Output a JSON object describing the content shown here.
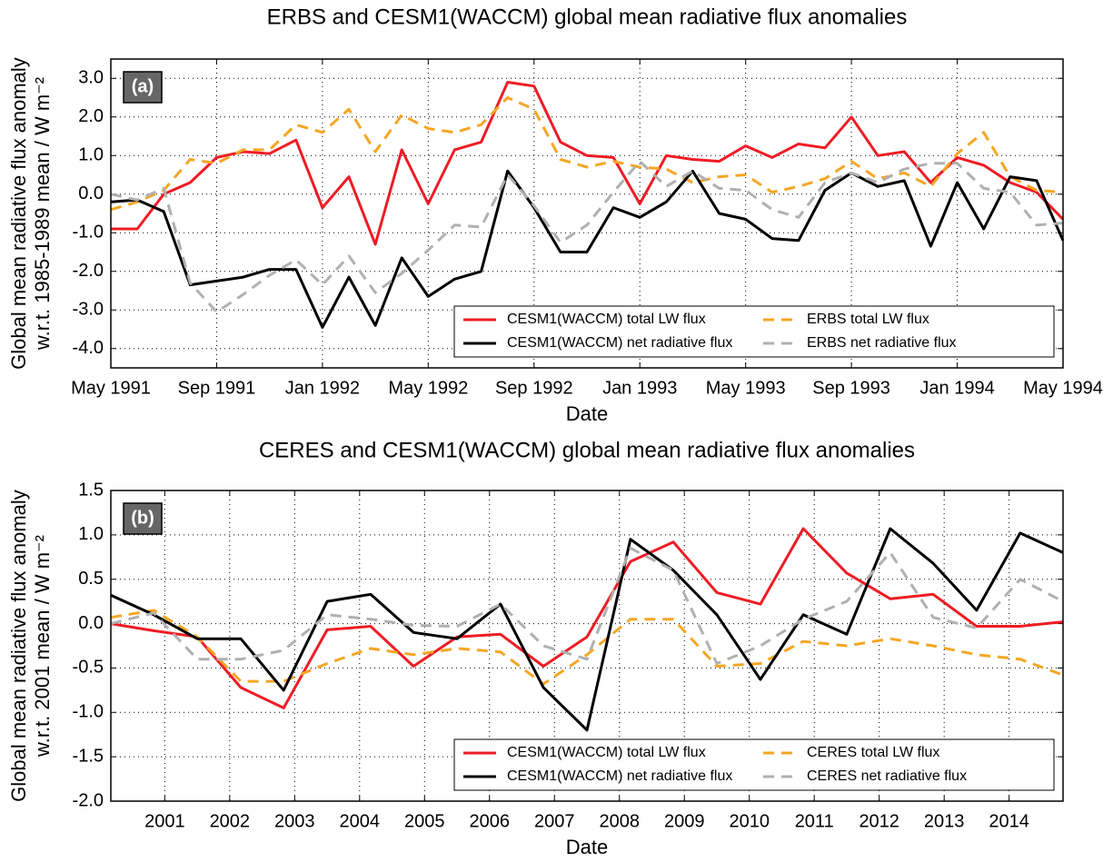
{
  "chart_data": [
    {
      "type": "line",
      "title": "ERBS and CESM1(WACCM) global mean radiative flux anomalies",
      "panel_label": "(a)",
      "xlabel": "Date",
      "ylabel": [
        "Global mean radiative flux anomaly",
        "w.r.t. 1985-1989 mean / W m⁻²"
      ],
      "x": [
        "1991-05",
        "1991-06",
        "1991-07",
        "1991-08",
        "1991-09",
        "1991-10",
        "1991-11",
        "1991-12",
        "1992-01",
        "1992-02",
        "1992-03",
        "1992-04",
        "1992-05",
        "1992-06",
        "1992-07",
        "1992-08",
        "1992-09",
        "1992-10",
        "1992-11",
        "1992-12",
        "1993-01",
        "1993-02",
        "1993-03",
        "1993-04",
        "1993-05",
        "1993-06",
        "1993-07",
        "1993-08",
        "1993-09",
        "1993-10",
        "1993-11",
        "1993-12",
        "1994-01",
        "1994-02",
        "1994-03",
        "1994-04",
        "1994-05"
      ],
      "xlim": [
        "1991-05",
        "1994-05"
      ],
      "xticks": [
        {
          "value": "1991-05",
          "label": "May 1991"
        },
        {
          "value": "1991-09",
          "label": "Sep 1991"
        },
        {
          "value": "1992-01",
          "label": "Jan 1992"
        },
        {
          "value": "1992-05",
          "label": "May 1992"
        },
        {
          "value": "1992-09",
          "label": "Sep 1992"
        },
        {
          "value": "1993-01",
          "label": "Jan 1993"
        },
        {
          "value": "1993-05",
          "label": "May 1993"
        },
        {
          "value": "1993-09",
          "label": "Sep 1993"
        },
        {
          "value": "1994-01",
          "label": "Jan 1994"
        },
        {
          "value": "1994-05",
          "label": "May 1994"
        }
      ],
      "ylim": [
        -4.5,
        3.5
      ],
      "yticks": [
        {
          "value": -4,
          "label": "-4.0"
        },
        {
          "value": -3,
          "label": "-3.0"
        },
        {
          "value": -2,
          "label": "-2.0"
        },
        {
          "value": -1,
          "label": "-1.0"
        },
        {
          "value": 0,
          "label": "0.0"
        },
        {
          "value": 1,
          "label": "1.0"
        },
        {
          "value": 2,
          "label": "2.0"
        },
        {
          "value": 3,
          "label": "3.0"
        }
      ],
      "grid": true,
      "legend": "lower right",
      "series": [
        {
          "name": "CESM1(WACCM) total LW flux",
          "color": "#ee1c25",
          "linestyle": "solid",
          "values": [
            -0.9,
            -0.9,
            0.0,
            0.3,
            0.95,
            1.1,
            1.05,
            1.4,
            -0.35,
            0.45,
            -1.3,
            1.15,
            -0.25,
            1.15,
            1.35,
            2.9,
            2.8,
            1.35,
            1.0,
            0.95,
            -0.25,
            1.0,
            0.9,
            0.85,
            1.25,
            0.95,
            1.3,
            1.2,
            2.0,
            1.0,
            1.1,
            0.3,
            0.95,
            0.75,
            0.3,
            0.05,
            -0.65
          ]
        },
        {
          "name": "ERBS total LW flux",
          "color": "#f5a623",
          "linestyle": "dashed",
          "values": [
            -0.4,
            -0.2,
            0.1,
            0.9,
            0.8,
            1.15,
            1.15,
            1.8,
            1.6,
            2.2,
            1.1,
            2.05,
            1.7,
            1.6,
            1.8,
            2.5,
            2.2,
            0.9,
            0.7,
            0.85,
            0.7,
            0.65,
            0.3,
            0.45,
            0.5,
            0.05,
            0.2,
            0.4,
            0.85,
            0.4,
            0.55,
            0.2,
            1.05,
            1.6,
            0.45,
            0.1,
            0.05
          ]
        },
        {
          "name": "CESM1(WACCM) net radiative flux",
          "color": "#000000",
          "linestyle": "solid",
          "values": [
            -0.2,
            -0.15,
            -0.45,
            -2.35,
            -2.25,
            -2.15,
            -1.95,
            -1.95,
            -3.45,
            -2.15,
            -3.4,
            -1.65,
            -2.65,
            -2.2,
            -2.0,
            0.6,
            -0.35,
            -1.5,
            -1.5,
            -0.35,
            -0.6,
            -0.2,
            0.6,
            -0.5,
            -0.65,
            -1.15,
            -1.2,
            0.1,
            0.55,
            0.2,
            0.35,
            -1.35,
            0.3,
            -0.9,
            0.45,
            0.35,
            -1.2
          ]
        },
        {
          "name": "ERBS net radiative flux",
          "color": "#b0b0b0",
          "linestyle": "dashed",
          "values": [
            0.0,
            -0.15,
            0.15,
            -2.3,
            -3.05,
            -2.6,
            -2.1,
            -1.7,
            -2.35,
            -1.6,
            -2.55,
            -2.05,
            -1.45,
            -0.8,
            -0.85,
            0.5,
            -0.3,
            -1.25,
            -0.8,
            0.05,
            0.85,
            0.2,
            0.6,
            0.15,
            0.1,
            -0.4,
            -0.6,
            0.3,
            0.55,
            0.3,
            0.65,
            0.8,
            0.8,
            0.15,
            0.05,
            -0.8,
            -0.75
          ]
        }
      ]
    },
    {
      "type": "line",
      "title": "CERES and CESM1(WACCM) global mean radiative flux anomalies",
      "panel_label": "(b)",
      "xlabel": "Date",
      "ylabel": [
        "Global mean radiative flux anomaly",
        "w.r.t. 2001 mean / W m⁻²"
      ],
      "x": [
        2000.17,
        2000.83,
        2001.5,
        2002.17,
        2002.83,
        2003.5,
        2004.17,
        2004.83,
        2005.5,
        2006.17,
        2006.83,
        2007.5,
        2008.17,
        2008.83,
        2009.5,
        2010.17,
        2010.83,
        2011.5,
        2012.17,
        2012.83,
        2013.5,
        2014.17,
        2014.83
      ],
      "xlim": [
        2000.17,
        2014.83
      ],
      "xticks": [
        2001,
        2002,
        2003,
        2004,
        2005,
        2006,
        2007,
        2008,
        2009,
        2010,
        2011,
        2012,
        2013,
        2014
      ],
      "ylim": [
        -2.0,
        1.5
      ],
      "yticks": [
        {
          "value": -2,
          "label": "-2.0"
        },
        {
          "value": -1.5,
          "label": "-1.5"
        },
        {
          "value": -1,
          "label": "-1.0"
        },
        {
          "value": -0.5,
          "label": "-0.5"
        },
        {
          "value": 0,
          "label": "0.0"
        },
        {
          "value": 0.5,
          "label": "0.5"
        },
        {
          "value": 1,
          "label": "1.0"
        },
        {
          "value": 1.5,
          "label": "1.5"
        }
      ],
      "grid": true,
      "legend": "lower right",
      "series": [
        {
          "name": "CESM1(WACCM) total LW flux",
          "color": "#ee1c25",
          "linestyle": "solid",
          "values": [
            0.0,
            -0.08,
            -0.15,
            -0.72,
            -0.95,
            -0.07,
            -0.03,
            -0.48,
            -0.15,
            -0.12,
            -0.48,
            -0.15,
            0.7,
            0.92,
            0.35,
            0.22,
            1.07,
            0.57,
            0.28,
            0.33,
            -0.03,
            -0.03,
            0.02
          ]
        },
        {
          "name": "CERES total LW flux",
          "color": "#f5a623",
          "linestyle": "dashed",
          "values": [
            0.07,
            0.15,
            -0.15,
            -0.65,
            -0.65,
            -0.45,
            -0.28,
            -0.35,
            -0.28,
            -0.32,
            -0.68,
            -0.35,
            0.05,
            0.05,
            -0.48,
            -0.45,
            -0.2,
            -0.25,
            -0.17,
            -0.25,
            -0.35,
            -0.4,
            -0.58
          ]
        },
        {
          "name": "CESM1(WACCM) net radiative flux",
          "color": "#000000",
          "linestyle": "solid",
          "values": [
            0.32,
            0.1,
            -0.17,
            -0.17,
            -0.75,
            0.25,
            0.33,
            -0.1,
            -0.17,
            0.22,
            -0.72,
            -1.2,
            0.95,
            0.6,
            0.1,
            -0.63,
            0.1,
            -0.12,
            1.07,
            0.68,
            0.15,
            1.02,
            0.8
          ]
        },
        {
          "name": "CERES net radiative flux",
          "color": "#b0b0b0",
          "linestyle": "dashed",
          "values": [
            0.0,
            0.12,
            -0.4,
            -0.4,
            -0.3,
            0.1,
            0.05,
            -0.02,
            -0.03,
            0.22,
            -0.25,
            -0.4,
            0.85,
            0.6,
            -0.45,
            -0.25,
            0.05,
            0.25,
            0.8,
            0.07,
            -0.05,
            0.5,
            0.25
          ]
        }
      ]
    }
  ]
}
